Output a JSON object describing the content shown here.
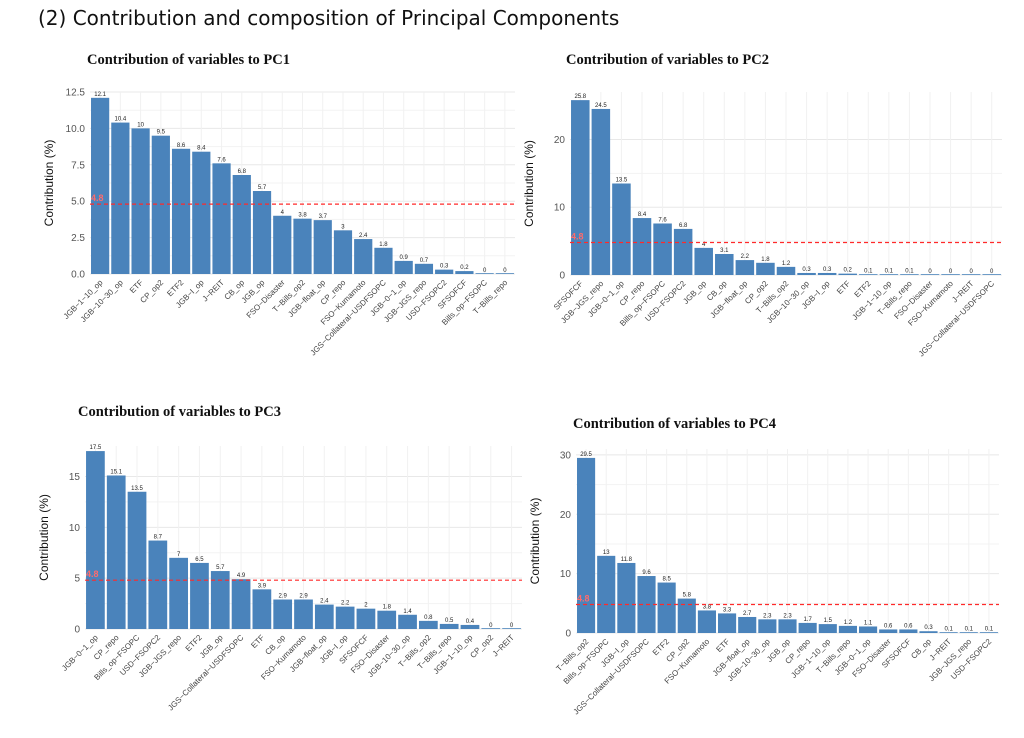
{
  "page": {
    "heading": "(2) Contribution and composition of Principal Components"
  },
  "colors": {
    "bar": "#4a83bb",
    "reference_line": "#ff2a2a",
    "reference_label": "#ff6b6b",
    "grid": "#e8e8e8"
  },
  "chart_data": [
    {
      "type": "bar",
      "title": "Contribution of variables to PC1",
      "ylabel": "Contribution (%)",
      "xlabel": "",
      "ylim": [
        0,
        12.5
      ],
      "yticks": [
        0,
        2.5,
        5,
        7.5,
        10,
        12.5
      ],
      "ytick_labels": [
        "0.0",
        "2.5",
        "5.0",
        "7.5",
        "10.0",
        "12.5"
      ],
      "grid": true,
      "reference_line": {
        "value": 4.8,
        "label": "4.8"
      },
      "categories": [
        "JGB−1−10_op",
        "JGB−10−30_op",
        "ETF",
        "CP_op2",
        "ETF2",
        "JGB−I_op",
        "J−REIT",
        "CB_op",
        "JGB_op",
        "FSO−Disaster",
        "T−Bills_op2",
        "JGB−float_op",
        "CP_repo",
        "FSO−Kumamoto",
        "JGS−Collateral−USDFSOPC",
        "JGB−0−1_op",
        "JGB−JGS_repo",
        "USD−FSOPC2",
        "SFSOFCF",
        "Bills_op−FSOPC",
        "T−Bills_repo"
      ],
      "values": [
        12.1,
        10.4,
        10,
        9.5,
        8.6,
        8.4,
        7.6,
        6.8,
        5.7,
        4,
        3.8,
        3.7,
        3,
        2.4,
        1.8,
        0.9,
        0.7,
        0.3,
        0.2,
        0,
        0
      ],
      "value_labels": [
        "12.1",
        "10.4",
        "10",
        "9.5",
        "8.6",
        "8.4",
        "7.6",
        "6.8",
        "5.7",
        "4",
        "3.8",
        "3.7",
        "3",
        "2.4",
        "1.8",
        "0.9",
        "0.7",
        "0.3",
        "0.2",
        "0",
        "0"
      ]
    },
    {
      "type": "bar",
      "title": "Contribution of variables to PC2",
      "ylabel": "Contribution (%)",
      "xlabel": "",
      "ylim": [
        0,
        27
      ],
      "yticks": [
        0,
        10,
        20
      ],
      "ytick_labels": [
        "0",
        "10",
        "20"
      ],
      "grid": true,
      "reference_line": {
        "value": 4.8,
        "label": "4.8"
      },
      "categories": [
        "SFSOFCF",
        "JGB−JGS_repo",
        "JGB−0−1_op",
        "CP_repo",
        "Bills_op−FSOPC",
        "USD−FSOPC2",
        "JGB_op",
        "CB_op",
        "JGB−float_op",
        "CP_op2",
        "T−Bills_op2",
        "JGB−10−30_op",
        "JGB−I_op",
        "ETF",
        "ETF2",
        "JGB−1−10_op",
        "T−Bills_repo",
        "FSO−Disaster",
        "FSO−Kumamoto",
        "J−REIT",
        "JGS−Collateral−USDFSOPC"
      ],
      "values": [
        25.8,
        24.5,
        13.5,
        8.4,
        7.6,
        6.8,
        4,
        3.1,
        2.2,
        1.8,
        1.2,
        0.3,
        0.3,
        0.2,
        0.1,
        0.1,
        0.1,
        0,
        0,
        0,
        0
      ],
      "value_labels": [
        "25.8",
        "24.5",
        "13.5",
        "8.4",
        "7.6",
        "6.8",
        "4",
        "3.1",
        "2.2",
        "1.8",
        "1.2",
        "0.3",
        "0.3",
        "0.2",
        "0.1",
        "0.1",
        "0.1",
        "0",
        "0",
        "0",
        "0"
      ]
    },
    {
      "type": "bar",
      "title": "Contribution of variables to PC3",
      "ylabel": "Contribution (%)",
      "xlabel": "",
      "ylim": [
        0,
        18
      ],
      "yticks": [
        0,
        5,
        10,
        15
      ],
      "ytick_labels": [
        "0",
        "5",
        "10",
        "15"
      ],
      "grid": true,
      "reference_line": {
        "value": 4.8,
        "label": "4.8"
      },
      "categories": [
        "JGB−0−1_op",
        "CP_repo",
        "Bills_op−FSOPC",
        "USD−FSOPC2",
        "JGB−JGS_repo",
        "ETF2",
        "JGB_op",
        "JGS−Collateral−USDFSOPC",
        "ETF",
        "CB_op",
        "FSO−Kumamoto",
        "JGB−float_op",
        "JGB−I_op",
        "SFSOFCF",
        "FSO−Disaster",
        "JGB−10−30_op",
        "T−Bills_op2",
        "T−Bills_repo",
        "JGB−1−10_op",
        "CP_op2",
        "J−REIT"
      ],
      "values": [
        17.5,
        15.1,
        13.5,
        8.7,
        7,
        6.5,
        5.7,
        4.9,
        3.9,
        2.9,
        2.9,
        2.4,
        2.2,
        2,
        1.8,
        1.4,
        0.8,
        0.5,
        0.4,
        0,
        0
      ],
      "value_labels": [
        "17.5",
        "15.1",
        "13.5",
        "8.7",
        "7",
        "6.5",
        "5.7",
        "4.9",
        "3.9",
        "2.9",
        "2.9",
        "2.4",
        "2.2",
        "2",
        "1.8",
        "1.4",
        "0.8",
        "0.5",
        "0.4",
        "0",
        "0"
      ]
    },
    {
      "type": "bar",
      "title": "Contribution of variables to PC4",
      "ylabel": "Contribution (%)",
      "xlabel": "",
      "ylim": [
        0,
        31
      ],
      "yticks": [
        0,
        10,
        20,
        30
      ],
      "ytick_labels": [
        "0",
        "10",
        "20",
        "30"
      ],
      "grid": true,
      "reference_line": {
        "value": 4.8,
        "label": "4.8"
      },
      "categories": [
        "T−Bills_op2",
        "Bills_op−FSOPC",
        "JGB−I_op",
        "JGS−Collateral−USDFSOPC",
        "ETF2",
        "CP_op2",
        "FSO−Kumamoto",
        "ETF",
        "JGB−float_op",
        "JGB−10−30_op",
        "JGB_op",
        "CP_repo",
        "JGB−1−10_op",
        "T−Bills_repo",
        "JGB−0−1_op",
        "FSO−Disaster",
        "SFSOFCF",
        "CB_op",
        "J−REIT",
        "JGB−JGS_repo",
        "USD−FSOPC2"
      ],
      "values": [
        29.5,
        13,
        11.8,
        9.6,
        8.5,
        5.8,
        3.8,
        3.3,
        2.7,
        2.3,
        2.3,
        1.7,
        1.5,
        1.2,
        1.1,
        0.6,
        0.6,
        0.3,
        0.1,
        0.1,
        0.1
      ],
      "value_labels": [
        "29.5",
        "13",
        "11.8",
        "9.6",
        "8.5",
        "5.8",
        "3.8",
        "3.3",
        "2.7",
        "2.3",
        "2.3",
        "1.7",
        "1.5",
        "1.2",
        "1.1",
        "0.6",
        "0.6",
        "0.3",
        "0.1",
        "0.1",
        "0.1"
      ]
    }
  ]
}
